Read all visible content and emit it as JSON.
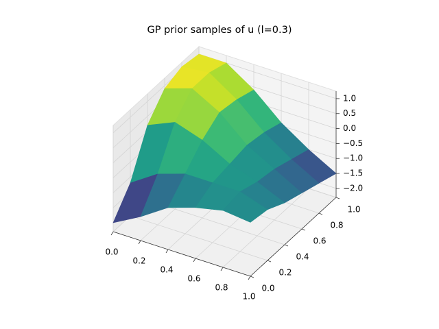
{
  "chart_data": {
    "type": "surface",
    "title": "GP prior samples of u (l=0.3)",
    "colormap": "viridis",
    "x": [
      0,
      0.2,
      0.4,
      0.6,
      0.8,
      1.0
    ],
    "y": [
      0,
      0.2,
      0.4,
      0.6,
      0.8,
      1.0
    ],
    "z": [
      [
        -2.0,
        -1.5,
        -0.9,
        -0.6,
        -0.4,
        -0.5
      ],
      [
        -1.2,
        -0.6,
        -0.3,
        -0.3,
        -0.3,
        -0.6
      ],
      [
        0.2,
        0.6,
        0.3,
        -0.2,
        -0.5,
        -0.9
      ],
      [
        0.9,
        1.2,
        0.7,
        -0.1,
        -0.6,
        -1.1
      ],
      [
        1.1,
        1.2,
        0.6,
        -0.2,
        -0.8,
        -1.3
      ],
      [
        1.0,
        1.0,
        0.4,
        -0.4,
        -1.0,
        -1.5
      ]
    ],
    "xlim": [
      0,
      1
    ],
    "ylim": [
      0,
      1
    ],
    "zlim": [
      -2.3,
      1.25
    ],
    "xticks": [
      {
        "value": 0,
        "label": "0.0"
      },
      {
        "value": 0.2,
        "label": "0.2"
      },
      {
        "value": 0.4,
        "label": "0.4"
      },
      {
        "value": 0.6,
        "label": "0.6"
      },
      {
        "value": 0.8,
        "label": "0.8"
      },
      {
        "value": 1,
        "label": "1.0"
      }
    ],
    "yticks": [
      {
        "value": 0,
        "label": "0.0"
      },
      {
        "value": 0.2,
        "label": "0.2"
      },
      {
        "value": 0.4,
        "label": "0.4"
      },
      {
        "value": 0.6,
        "label": "0.6"
      },
      {
        "value": 0.8,
        "label": "0.8"
      },
      {
        "value": 1,
        "label": "1.0"
      }
    ],
    "zticks": [
      {
        "value": 1,
        "label": "1.0"
      },
      {
        "value": 0.5,
        "label": "0.5"
      },
      {
        "value": 0,
        "label": "0.0"
      },
      {
        "value": -0.5,
        "label": "−0.5"
      },
      {
        "value": -1,
        "label": "−1.0"
      },
      {
        "value": -1.5,
        "label": "−1.5"
      },
      {
        "value": -2,
        "label": "−2.0"
      }
    ],
    "grid": true
  }
}
